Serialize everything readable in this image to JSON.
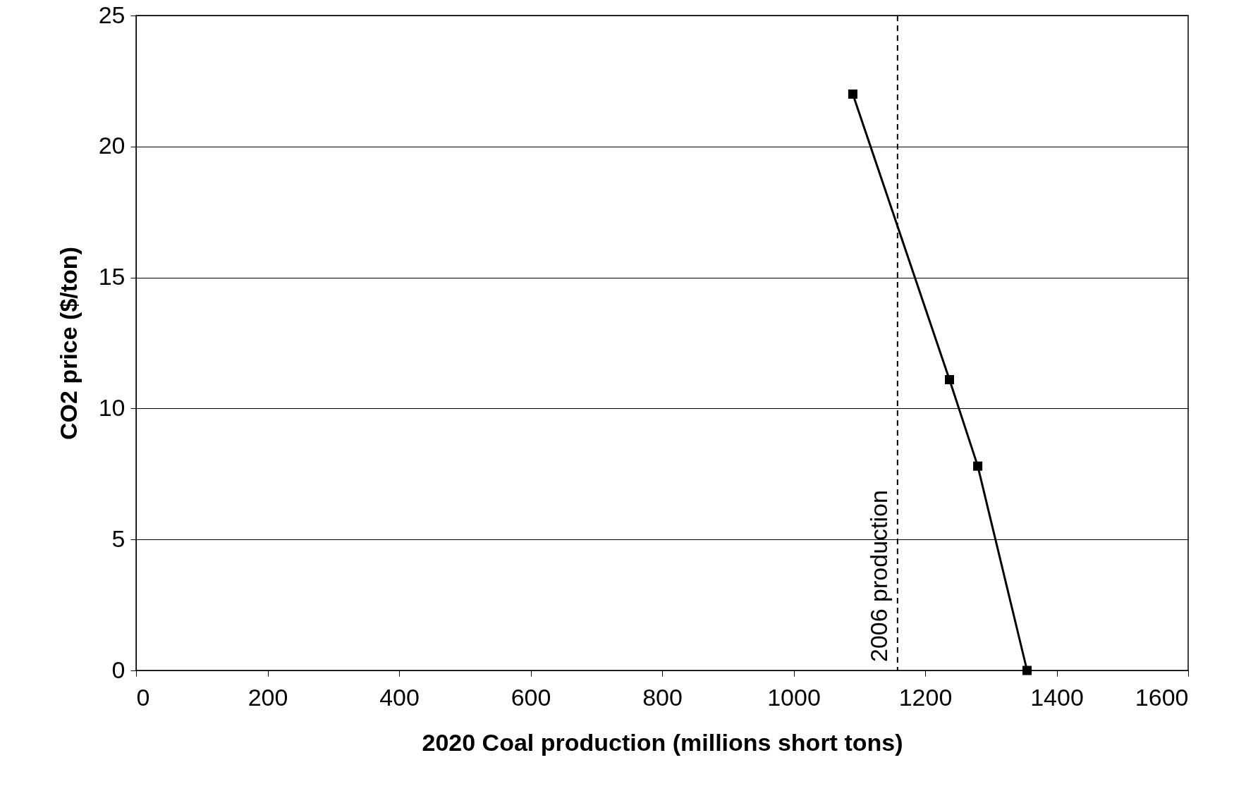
{
  "chart_data": {
    "type": "line",
    "xlabel": "2020 Coal production (millions short tons)",
    "ylabel": "CO2 price ($/ton)",
    "x": [
      1090,
      1237,
      1280,
      1355
    ],
    "series": [
      {
        "color": "#000000",
        "values": [
          22,
          11.1,
          7.8,
          0
        ]
      }
    ],
    "xlim": [
      0,
      1600
    ],
    "xticks": [
      0,
      200,
      400,
      600,
      800,
      1000,
      1200,
      1400,
      1600
    ],
    "ylim": [
      0,
      25
    ],
    "yticks": [
      0,
      5,
      10,
      15,
      20,
      25
    ],
    "grid": "y",
    "marker": "square",
    "line_style": "solid",
    "ref_lines": [
      {
        "axis": "x",
        "value": 1158,
        "label": "2006 production",
        "line_style": "dashed",
        "color": "#000000"
      }
    ]
  }
}
